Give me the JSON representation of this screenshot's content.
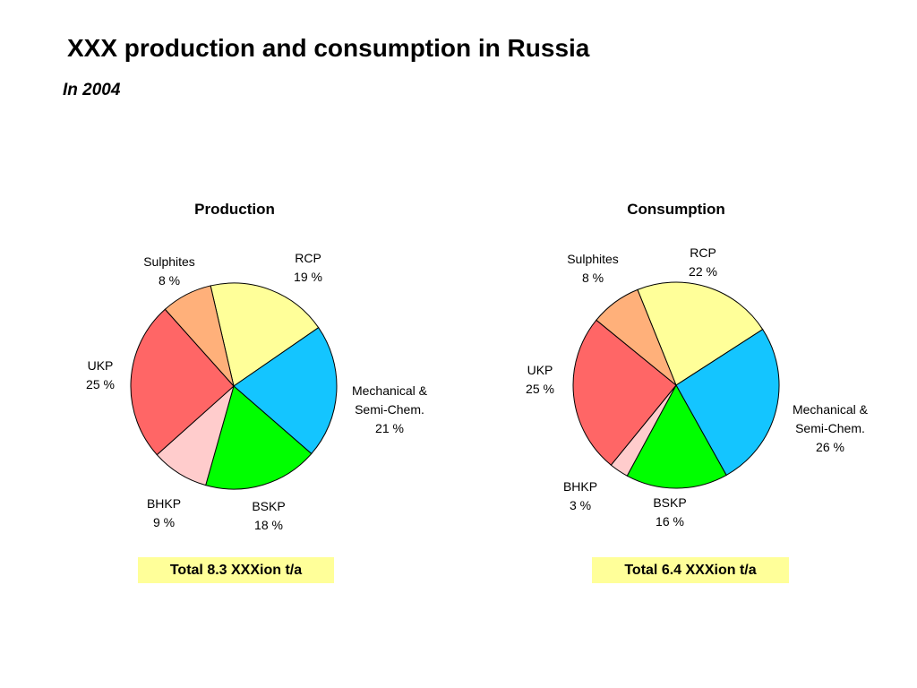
{
  "header": {
    "title": "XXX production and consumption in Russia",
    "subtitle": "In 2004"
  },
  "chart_data": [
    {
      "type": "pie",
      "title": "Production",
      "slices": [
        {
          "label": [
            "RCP"
          ],
          "value": 19,
          "value_label": "19 %",
          "color": "#FFFF99"
        },
        {
          "label": [
            "Mechanical &",
            "Semi-Chem."
          ],
          "value": 21,
          "value_label": "21 %",
          "color": "#14C5FF"
        },
        {
          "label": [
            "BSKP"
          ],
          "value": 18,
          "value_label": "18 %",
          "color": "#00FF00"
        },
        {
          "label": [
            "BHKP"
          ],
          "value": 9,
          "value_label": "9 %",
          "color": "#FFCCCC"
        },
        {
          "label": [
            "UKP"
          ],
          "value": 25,
          "value_label": "25 %",
          "color": "#FF6666"
        },
        {
          "label": [
            "Sulphites"
          ],
          "value": 8,
          "value_label": "8 %",
          "color": "#FFB07A"
        }
      ],
      "total": "Total 8.3 XXXion t/a",
      "total_bg": "#FFFF99"
    },
    {
      "type": "pie",
      "title": "Consumption",
      "slices": [
        {
          "label": [
            "RCP"
          ],
          "value": 22,
          "value_label": "22 %",
          "color": "#FFFF99"
        },
        {
          "label": [
            "Mechanical &",
            "Semi-Chem."
          ],
          "value": 26,
          "value_label": "26 %",
          "color": "#14C5FF"
        },
        {
          "label": [
            "BSKP"
          ],
          "value": 16,
          "value_label": "16 %",
          "color": "#00FF00"
        },
        {
          "label": [
            "BHKP"
          ],
          "value": 3,
          "value_label": "3 %",
          "color": "#FFCCCC"
        },
        {
          "label": [
            "UKP"
          ],
          "value": 25,
          "value_label": "25 %",
          "color": "#FF6666"
        },
        {
          "label": [
            "Sulphites"
          ],
          "value": 8,
          "value_label": "8 %",
          "color": "#FFB07A"
        }
      ],
      "total": "Total 6.4 XXXion t/a",
      "total_bg": "#FFFF99"
    }
  ]
}
